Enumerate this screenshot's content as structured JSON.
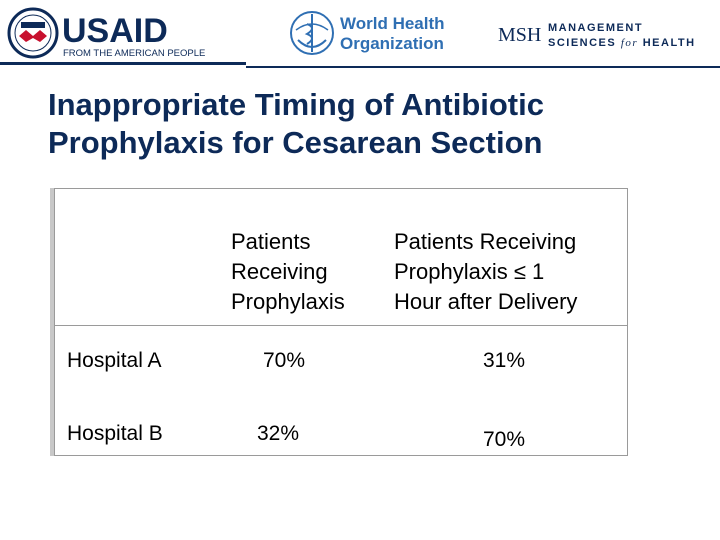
{
  "logos": {
    "usaid": {
      "name": "USAID",
      "tagline": "FROM THE AMERICAN PEOPLE"
    },
    "who": {
      "line1": "World Health",
      "line2": "Organization"
    },
    "msh": {
      "abbr": "MSH",
      "line1": "MANAGEMENT",
      "line2a": "SCIENCES",
      "line2b": "for",
      "line2c": "HEALTH"
    }
  },
  "slide": {
    "title_line1": "Inappropriate Timing of Antibiotic",
    "title_line2": "Prophylaxis for Cesarean Section"
  },
  "table": {
    "col1_header": [
      "Patients",
      "Receiving",
      "Prophylaxis"
    ],
    "col2_header": [
      "Patients Receiving",
      "Prophylaxis  ≤ 1",
      "Hour after Delivery"
    ],
    "rows": [
      {
        "label": "Hospital A",
        "v1": "70%",
        "v2": "31%"
      },
      {
        "label": "Hospital B",
        "v1": "32%",
        "v2": "70%"
      }
    ]
  },
  "colors": {
    "navy": "#0d2a58",
    "usaid_red": "#c8102e",
    "who_blue": "#2f6fb3"
  }
}
